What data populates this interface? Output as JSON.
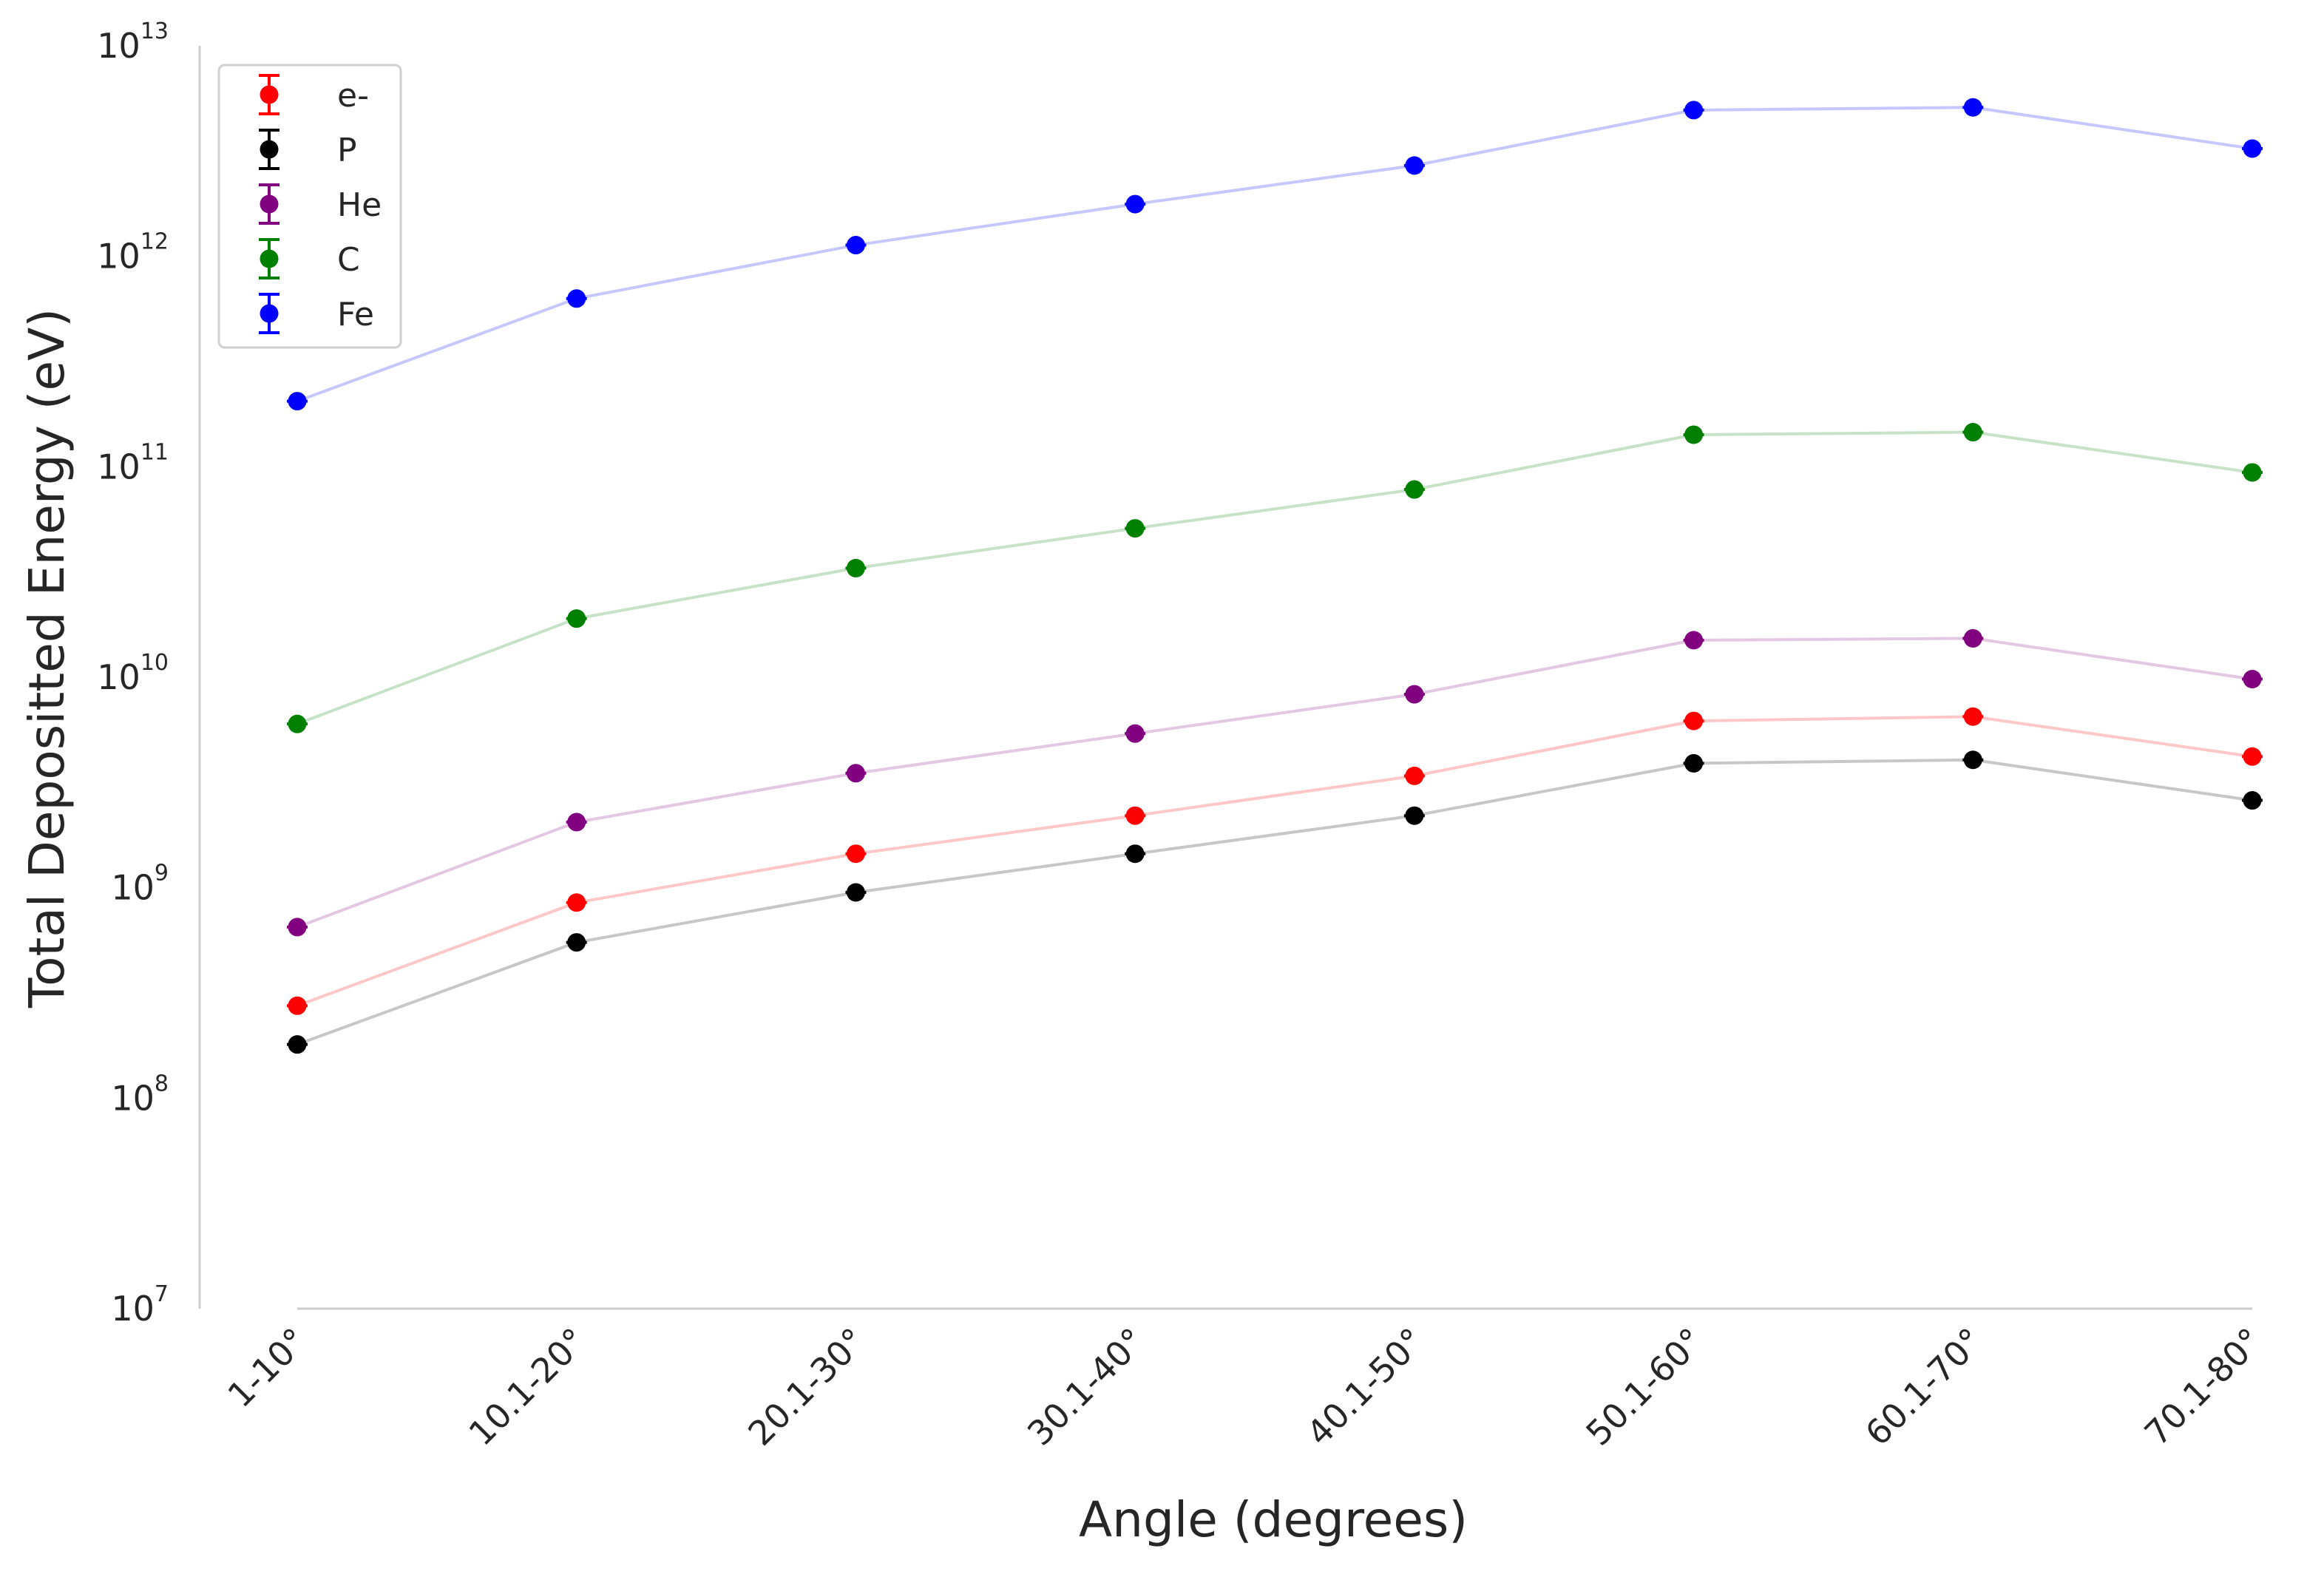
{
  "chart_data": {
    "type": "line",
    "xlabel": "Angle (degrees)",
    "ylabel": "Total Depositted Energy (eV)",
    "yscale": "log",
    "ylim": [
      10000000,
      10000000000000
    ],
    "yticks": [
      {
        "base": "10",
        "exp": "7"
      },
      {
        "base": "10",
        "exp": "8"
      },
      {
        "base": "10",
        "exp": "9"
      },
      {
        "base": "10",
        "exp": "10"
      },
      {
        "base": "10",
        "exp": "11"
      },
      {
        "base": "10",
        "exp": "12"
      },
      {
        "base": "10",
        "exp": "13"
      }
    ],
    "categories": [
      "1-10°",
      "10.1-20°",
      "20.1-30°",
      "30.1-40°",
      "40.1-50°",
      "50.1-60°",
      "60.1-70°",
      "70.1-80°"
    ],
    "grid": false,
    "legend_position": "top-left",
    "markers": "circle with error bars",
    "series": [
      {
        "name": "e-",
        "color": "#ff0000",
        "values": [
          275000000,
          850000000,
          1450000000,
          2200000000,
          3400000000,
          6200000000,
          6500000000,
          4200000000
        ]
      },
      {
        "name": "P",
        "color": "#000000",
        "values": [
          180000000,
          550000000,
          950000000,
          1450000000,
          2200000000,
          3900000000,
          4050000000,
          2600000000
        ]
      },
      {
        "name": "He",
        "color": "#800080",
        "values": [
          650000000,
          2050000000,
          3500000000,
          5400000000,
          8300000000,
          15000000000,
          15300000000,
          9800000000
        ]
      },
      {
        "name": "C",
        "color": "#008000",
        "values": [
          6000000000,
          19000000000,
          33000000000,
          51000000000,
          78000000000,
          142000000000,
          146000000000,
          94000000000
        ]
      },
      {
        "name": "Fe",
        "color": "#0000ff",
        "values": [
          205000000000,
          630000000000,
          1130000000000,
          1770000000000,
          2700000000000,
          4950000000000,
          5100000000000,
          3250000000000
        ]
      }
    ]
  }
}
